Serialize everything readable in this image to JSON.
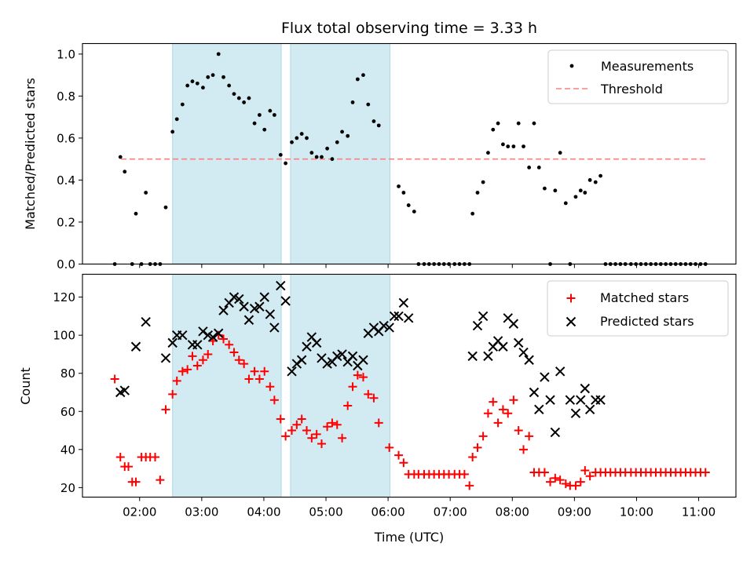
{
  "chart_data": {
    "title": "Flux total observing time = 3.33 h",
    "xlabel": "Time (UTC)",
    "x_ticks": [
      "02:00",
      "03:00",
      "04:00",
      "05:00",
      "06:00",
      "07:00",
      "08:00",
      "09:00",
      "10:00",
      "11:00"
    ],
    "x_range_hours": [
      1.08,
      11.6
    ],
    "shaded_intervals_hours": [
      [
        2.53,
        4.28
      ],
      [
        4.43,
        6.03
      ]
    ],
    "shade_color": "#add8e6",
    "panels": [
      {
        "type": "scatter",
        "ylabel": "Matched/Predicted stars",
        "ylim": [
          0,
          1.05
        ],
        "y_ticks": [
          0.0,
          0.2,
          0.4,
          0.6,
          0.8,
          1.0
        ],
        "y_tick_labels": [
          "0.0",
          "0.2",
          "0.4",
          "0.6",
          "0.8",
          "1.0"
        ],
        "legend_position": "top-right",
        "threshold": {
          "name": "Threshold",
          "value": 0.5,
          "x_range_hours": [
            1.7,
            11.15
          ],
          "color": "#ff7f7f"
        },
        "series": [
          {
            "name": "Measurements",
            "marker": "dot",
            "color": "#000000",
            "x": [
              1.6,
              1.69,
              1.76,
              1.88,
              1.94,
              2.03,
              2.1,
              2.17,
              2.25,
              2.33,
              2.42,
              2.53,
              2.6,
              2.69,
              2.77,
              2.85,
              2.93,
              3.02,
              3.1,
              3.18,
              3.27,
              3.35,
              3.44,
              3.52,
              3.6,
              3.68,
              3.76,
              3.85,
              3.93,
              4.01,
              4.1,
              4.17,
              4.27,
              4.35,
              4.45,
              4.53,
              4.61,
              4.69,
              4.77,
              4.85,
              4.93,
              5.02,
              5.1,
              5.18,
              5.26,
              5.35,
              5.43,
              5.51,
              5.6,
              5.68,
              5.77,
              5.85,
              6.17,
              6.25,
              6.33,
              6.42,
              6.49,
              6.58,
              6.66,
              6.74,
              6.82,
              6.9,
              6.98,
              7.07,
              7.15,
              7.23,
              7.31,
              7.36,
              7.44,
              7.53,
              7.61,
              7.69,
              7.77,
              7.85,
              7.93,
              8.02,
              8.1,
              8.18,
              8.27,
              8.35,
              8.43,
              8.52,
              8.61,
              8.69,
              8.77,
              8.86,
              8.93,
              9.02,
              9.1,
              9.17,
              9.25,
              9.34,
              9.42,
              9.5,
              9.58,
              9.66,
              9.74,
              9.82,
              9.91,
              9.99,
              10.07,
              10.15,
              10.23,
              10.31,
              10.39,
              10.47,
              10.55,
              10.63,
              10.71,
              10.79,
              10.87,
              10.95,
              11.03,
              11.11
            ],
            "y": [
              0.0,
              0.51,
              0.44,
              0.0,
              0.24,
              0.0,
              0.34,
              0.0,
              0.0,
              0.0,
              0.27,
              0.63,
              0.69,
              0.76,
              0.85,
              0.87,
              0.86,
              0.84,
              0.89,
              0.9,
              1.0,
              0.89,
              0.85,
              0.81,
              0.79,
              0.77,
              0.79,
              0.67,
              0.71,
              0.64,
              0.73,
              0.71,
              0.52,
              0.48,
              0.58,
              0.6,
              0.62,
              0.6,
              0.53,
              0.51,
              0.51,
              0.55,
              0.5,
              0.58,
              0.63,
              0.61,
              0.77,
              0.88,
              0.9,
              0.76,
              0.68,
              0.66,
              0.37,
              0.34,
              0.28,
              0.25,
              0.0,
              0.0,
              0.0,
              0.0,
              0.0,
              0.0,
              0.0,
              0.0,
              0.0,
              0.0,
              0.0,
              0.24,
              0.34,
              0.39,
              0.53,
              0.64,
              0.67,
              0.57,
              0.56,
              0.56,
              0.67,
              0.56,
              0.46,
              0.67,
              0.46,
              0.36,
              0.0,
              0.35,
              0.53,
              0.29,
              0.0,
              0.32,
              0.35,
              0.34,
              0.4,
              0.39,
              0.42,
              0.0,
              0.0,
              0.0,
              0.0,
              0.0,
              0.0,
              0.0,
              0.0,
              0.0,
              0.0,
              0.0,
              0.0,
              0.0,
              0.0,
              0.0,
              0.0,
              0.0,
              0.0,
              0.0,
              0.0,
              0.0
            ]
          }
        ]
      },
      {
        "type": "scatter",
        "ylabel": "Count",
        "ylim": [
          15,
          132
        ],
        "y_ticks": [
          20,
          40,
          60,
          80,
          100,
          120
        ],
        "y_tick_labels": [
          "20",
          "40",
          "60",
          "80",
          "100",
          "120"
        ],
        "legend_position": "top-right",
        "series": [
          {
            "name": "Matched stars",
            "marker": "plus",
            "color": "#ff0000",
            "x": [
              1.6,
              1.69,
              1.76,
              1.82,
              1.88,
              1.94,
              2.03,
              2.1,
              2.17,
              2.25,
              2.33,
              2.42,
              2.53,
              2.6,
              2.69,
              2.77,
              2.85,
              2.93,
              3.02,
              3.1,
              3.18,
              3.27,
              3.35,
              3.44,
              3.52,
              3.6,
              3.68,
              3.76,
              3.85,
              3.93,
              4.01,
              4.1,
              4.17,
              4.27,
              4.35,
              4.45,
              4.53,
              4.61,
              4.69,
              4.77,
              4.85,
              4.93,
              5.02,
              5.1,
              5.18,
              5.26,
              5.35,
              5.43,
              5.51,
              5.6,
              5.68,
              5.77,
              5.85,
              6.02,
              6.17,
              6.25,
              6.33,
              6.42,
              6.49,
              6.58,
              6.66,
              6.74,
              6.82,
              6.9,
              6.98,
              7.07,
              7.15,
              7.23,
              7.31,
              7.36,
              7.44,
              7.53,
              7.61,
              7.69,
              7.77,
              7.85,
              7.93,
              8.02,
              8.1,
              8.18,
              8.27,
              8.35,
              8.43,
              8.52,
              8.61,
              8.69,
              8.77,
              8.86,
              8.93,
              9.02,
              9.1,
              9.17,
              9.25,
              9.34,
              9.42,
              9.5,
              9.58,
              9.66,
              9.74,
              9.82,
              9.91,
              9.99,
              10.07,
              10.15,
              10.23,
              10.31,
              10.39,
              10.47,
              10.55,
              10.63,
              10.71,
              10.79,
              10.87,
              10.95,
              11.03,
              11.11
            ],
            "y": [
              77,
              36,
              31,
              31,
              23,
              23,
              36,
              36,
              36,
              36,
              24,
              61,
              69,
              76,
              81,
              82,
              89,
              84,
              87,
              90,
              97,
              100,
              98,
              95,
              91,
              87,
              85,
              77,
              81,
              77,
              81,
              73,
              66,
              56,
              47,
              50,
              53,
              56,
              50,
              46,
              48,
              43,
              52,
              54,
              53,
              46,
              63,
              73,
              79,
              78,
              69,
              67,
              54,
              41,
              37,
              33,
              27,
              27,
              27,
              27,
              27,
              27,
              27,
              27,
              27,
              27,
              27,
              27,
              21,
              36,
              41,
              47,
              59,
              65,
              54,
              61,
              59,
              66,
              50,
              40,
              47,
              28,
              28,
              28,
              23,
              25,
              24,
              22,
              21,
              21,
              23,
              29,
              26,
              28,
              28,
              28,
              28,
              28,
              28,
              28,
              28,
              28,
              28,
              28,
              28,
              28,
              28,
              28,
              28,
              28,
              28,
              28,
              28,
              28,
              28,
              28
            ]
          },
          {
            "name": "Predicted stars",
            "marker": "x",
            "color": "#000000",
            "x": [
              1.69,
              1.76,
              1.94,
              2.1,
              2.42,
              2.53,
              2.6,
              2.69,
              2.85,
              2.93,
              3.02,
              3.1,
              3.18,
              3.27,
              3.35,
              3.44,
              3.52,
              3.6,
              3.68,
              3.76,
              3.85,
              3.93,
              4.01,
              4.1,
              4.17,
              4.27,
              4.35,
              4.45,
              4.53,
              4.61,
              4.69,
              4.77,
              4.85,
              4.93,
              5.02,
              5.1,
              5.18,
              5.26,
              5.35,
              5.43,
              5.51,
              5.6,
              5.68,
              5.77,
              5.85,
              5.93,
              6.02,
              6.1,
              6.17,
              6.25,
              6.33,
              7.36,
              7.44,
              7.53,
              7.61,
              7.69,
              7.77,
              7.85,
              7.93,
              8.02,
              8.1,
              8.18,
              8.27,
              8.35,
              8.43,
              8.52,
              8.61,
              8.69,
              8.77,
              8.93,
              9.02,
              9.1,
              9.17,
              9.25,
              9.34,
              9.42
            ],
            "y": [
              70,
              71,
              94,
              107,
              88,
              96,
              100,
              100,
              95,
              95,
              102,
              100,
              99,
              101,
              113,
              117,
              120,
              119,
              115,
              108,
              114,
              115,
              120,
              111,
              104,
              126,
              118,
              81,
              85,
              87,
              94,
              99,
              96,
              88,
              85,
              86,
              89,
              90,
              86,
              89,
              84,
              87,
              101,
              104,
              102,
              105,
              104,
              110,
              110,
              117,
              109,
              89,
              105,
              110,
              89,
              94,
              97,
              94,
              109,
              106,
              96,
              91,
              87,
              70,
              61,
              78,
              66,
              49,
              81,
              66,
              59,
              66,
              72,
              61,
              66,
              66
            ]
          }
        ]
      }
    ]
  }
}
